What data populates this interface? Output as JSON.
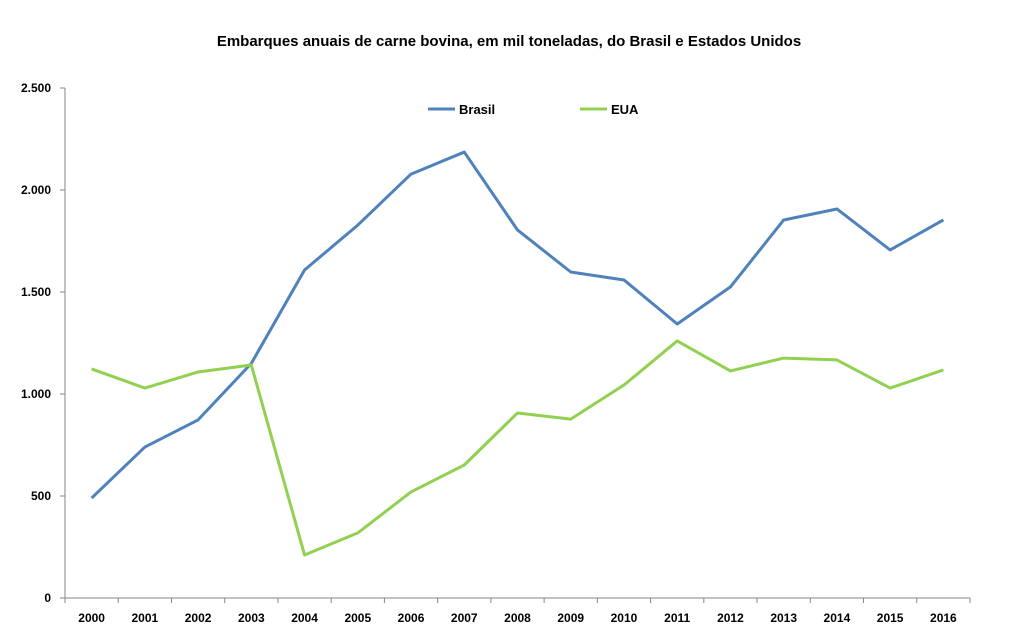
{
  "chart_data": {
    "type": "line",
    "title": "Embarques anuais de carne bovina, em mil toneladas, do Brasil e Estados Unidos",
    "xlabel": "",
    "ylabel": "",
    "ylim": [
      0,
      2500
    ],
    "yticks": [
      0,
      500,
      1000,
      1500,
      2000,
      2500
    ],
    "ytick_labels": [
      "0",
      "500",
      "1.000",
      "1.500",
      "2.000",
      "2.500"
    ],
    "categories": [
      "2000",
      "2001",
      "2002",
      "2003",
      "2004",
      "2005",
      "2006",
      "2007",
      "2008",
      "2009",
      "2010",
      "2011",
      "2012",
      "2013",
      "2014",
      "2015",
      "2016"
    ],
    "legend_position": "top-center",
    "grid": false,
    "series": [
      {
        "name": "Brasil",
        "color": "#4F81BD",
        "values": [
          490,
          740,
          873,
          1150,
          1608,
          1828,
          2078,
          2186,
          1804,
          1598,
          1559,
          1343,
          1525,
          1853,
          1907,
          1706,
          1853
        ]
      },
      {
        "name": "EUA",
        "color": "#92D050",
        "values": [
          1123,
          1029,
          1108,
          1142,
          211,
          319,
          520,
          652,
          907,
          877,
          1044,
          1260,
          1113,
          1176,
          1167,
          1029,
          1118
        ]
      }
    ]
  }
}
